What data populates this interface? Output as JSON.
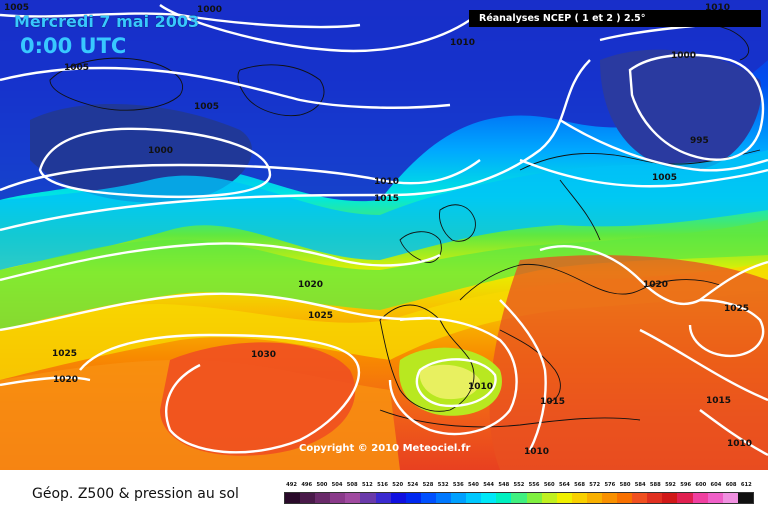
{
  "header": {
    "date": "Mercredi 7 mai 2003",
    "time": "0:00 UTC",
    "source_title": "Réanalyses NCEP ( 1 et 2 ) 2.5°"
  },
  "copyright": "Copyright © 2010 Meteociel.fr",
  "footer_title": "Géop. Z500 & pression au sol",
  "isobar_labels": [
    "1005",
    "1000",
    "1010",
    "1005",
    "1005",
    "1000",
    "1010",
    "1015",
    "1020",
    "1025",
    "1030",
    "1025",
    "1020",
    "1010",
    "1015",
    "1010",
    "1020",
    "1025",
    "1015",
    "1010",
    "1000",
    "995",
    "1005",
    "1010"
  ],
  "legend": {
    "values": [
      "492",
      "496",
      "500",
      "504",
      "508",
      "512",
      "516",
      "520",
      "524",
      "528",
      "532",
      "536",
      "540",
      "544",
      "548",
      "552",
      "556",
      "560",
      "564",
      "568",
      "572",
      "576",
      "580",
      "584",
      "588",
      "592",
      "596",
      "600",
      "604",
      "608",
      "612"
    ],
    "colors": [
      "#2a0a2a",
      "#4a1a4a",
      "#6a2a6a",
      "#8a3a8a",
      "#a04aa0",
      "#6a3aaa",
      "#3a2ad0",
      "#1010e0",
      "#0028f0",
      "#0050ff",
      "#0078ff",
      "#00a0ff",
      "#00c8ff",
      "#00e8f8",
      "#00f0c0",
      "#40f080",
      "#80f040",
      "#c0f020",
      "#f0f000",
      "#f8d000",
      "#f8b000",
      "#f89000",
      "#f87000",
      "#f05020",
      "#e03020",
      "#d01818",
      "#e02050",
      "#f040a0",
      "#f060c8",
      "#f090e0",
      "#101010"
    ]
  }
}
